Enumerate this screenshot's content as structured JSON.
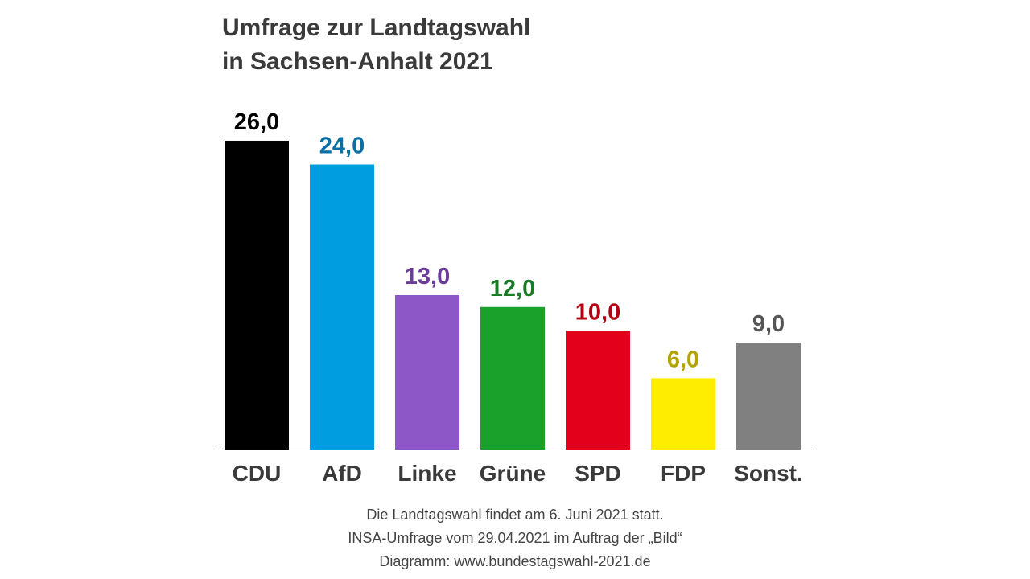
{
  "title_lines": [
    "Umfrage zur Landtagswahl",
    "in Sachsen-Anhalt 2021"
  ],
  "notes": [
    "Die Landtagswahl findet am 6. Juni 2021 statt.",
    "INSA-Umfrage vom 29.04.2021 im Auftrag der „Bild“",
    "Diagramm: www.bundestagswahl-2021.de"
  ],
  "chart_data": {
    "type": "bar",
    "title": "Umfrage zur Landtagswahl in Sachsen-Anhalt 2021",
    "categories": [
      "CDU",
      "AfD",
      "Linke",
      "Grüne",
      "SPD",
      "FDP",
      "Sonst."
    ],
    "values": [
      26.0,
      24.0,
      13.0,
      12.0,
      10.0,
      6.0,
      9.0
    ],
    "value_labels": [
      "26,0",
      "24,0",
      "13,0",
      "12,0",
      "10,0",
      "6,0",
      "9,0"
    ],
    "bar_colors": [
      "#000000",
      "#009ee0",
      "#8e57c8",
      "#1aa12c",
      "#e3001b",
      "#ffed00",
      "#808080"
    ],
    "label_colors": [
      "#000000",
      "#0a6fa3",
      "#6a3d99",
      "#1a7a25",
      "#b30012",
      "#b3a300",
      "#555555"
    ],
    "category_label_color": "#3a3a3a",
    "axis_color": "#888888",
    "xlabel": "",
    "ylabel": "",
    "grid": false,
    "legend": "none"
  }
}
